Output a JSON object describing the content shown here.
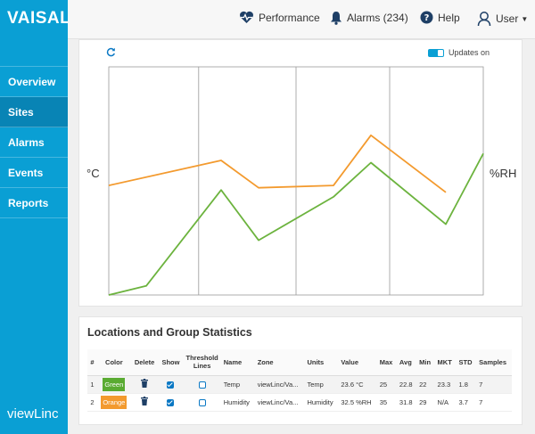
{
  "brand": {
    "logo": "VAISALA",
    "product": "viewLinc"
  },
  "nav": {
    "items": [
      {
        "label": "Overview"
      },
      {
        "label": "Sites"
      },
      {
        "label": "Alarms"
      },
      {
        "label": "Events"
      },
      {
        "label": "Reports"
      }
    ],
    "active": "Sites"
  },
  "topbar": {
    "performance": "Performance",
    "alarms": "Alarms (234)",
    "help": "Help",
    "user": "User"
  },
  "chart_toolbar": {
    "updates_label": "Updates on",
    "updates_on": true
  },
  "chart_data": {
    "type": "line",
    "y_left_label": "°C",
    "y_right_label": "%RH",
    "grid": "vertical",
    "x": [
      0,
      1,
      2,
      3,
      4,
      5,
      6,
      7,
      8,
      9,
      10
    ],
    "series": [
      {
        "color": "#f39a2e",
        "values": [
          0.48,
          null,
          null,
          0.59,
          0.47,
          null,
          0.48,
          0.7,
          null,
          0.45,
          null
        ]
      },
      {
        "color": "#6cb33e",
        "values": [
          0.0,
          0.04,
          null,
          0.46,
          0.24,
          null,
          0.43,
          0.58,
          null,
          0.31,
          0.62
        ]
      }
    ]
  },
  "stats": {
    "title": "Locations and Group Statistics",
    "columns": [
      "#",
      "Color",
      "Delete",
      "Show",
      "Threshold Lines",
      "Name",
      "Zone",
      "Units",
      "Value",
      "Max",
      "Avg",
      "Min",
      "MKT",
      "STD",
      "Samples"
    ],
    "rows": [
      {
        "num": "1",
        "color_label": "Green",
        "color": "#5aab32",
        "show": true,
        "threshold": false,
        "name": "Temp",
        "zone": "viewLinc/Va...",
        "units": "Temp",
        "value": "23.6 °C",
        "max": "25",
        "avg": "22.8",
        "min": "22",
        "mkt": "23.3",
        "std": "1.8",
        "samples": "7"
      },
      {
        "num": "2",
        "color_label": "Orange",
        "color": "#f39a2e",
        "show": true,
        "threshold": false,
        "name": "Humidity",
        "zone": "viewLinc/Va...",
        "units": "Humidity",
        "value": "32.5 %RH",
        "max": "35",
        "avg": "31.8",
        "min": "29",
        "mkt": "N/A",
        "std": "3.7",
        "samples": "7"
      }
    ]
  },
  "icons": {
    "performance": "heart-pulse-icon",
    "alarms": "bell-icon",
    "help": "question-circle-icon",
    "user": "user-icon",
    "refresh": "refresh-icon",
    "delete": "trash-icon"
  }
}
